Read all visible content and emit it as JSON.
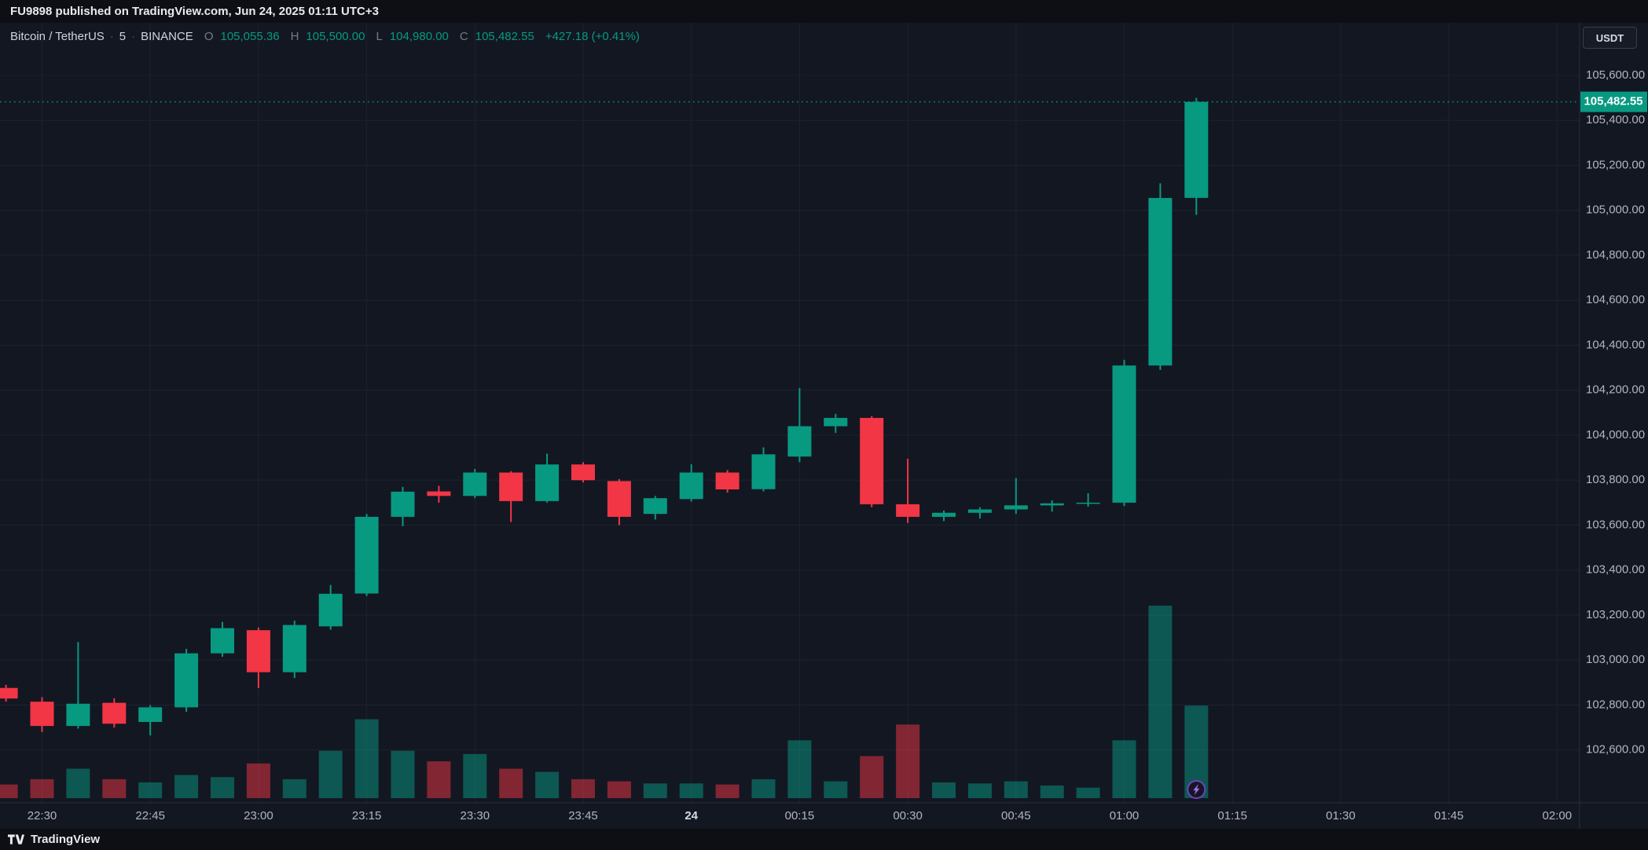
{
  "top_bar": {
    "text": "FU9898 published on TradingView.com, Jun 24, 2025 01:11 UTC+3"
  },
  "legend": {
    "symbol": "Bitcoin / TetherUS",
    "sep": "·",
    "interval": "5",
    "exchange": "BINANCE",
    "ohlc": {
      "o_label": "O",
      "o": "105,055.36",
      "h_label": "H",
      "h": "105,500.00",
      "l_label": "L",
      "l": "104,980.00",
      "c_label": "C",
      "c": "105,482.55",
      "change": "+427.18 (+0.41%)"
    }
  },
  "price_axis": {
    "currency_button": "USDT",
    "labels": [
      "105,600.00",
      "105,400.00",
      "105,200.00",
      "105,000.00",
      "104,800.00",
      "104,600.00",
      "104,400.00",
      "104,200.00",
      "104,000.00",
      "103,800.00",
      "103,600.00",
      "103,400.00",
      "103,200.00",
      "103,000.00",
      "102,800.00",
      "102,600.00"
    ],
    "last_price_badge": "105,482.55"
  },
  "time_axis": {
    "labels": [
      "22:30",
      "22:45",
      "23:00",
      "23:15",
      "23:30",
      "23:45",
      "24",
      "00:15",
      "00:30",
      "00:45",
      "01:00",
      "01:15",
      "01:30",
      "01:45",
      "02:00"
    ],
    "emphasized_label": "24"
  },
  "footer": {
    "brand": "TradingView"
  },
  "colors": {
    "up": "#089981",
    "down": "#f23645",
    "bg": "#131722",
    "grid": "#1d222f",
    "axis_separator": "#2a2e39",
    "axis_text": "#b2b5be",
    "axis_text_emphasis": "#d8dbe3",
    "badge_text": "#ffffff",
    "marker_purple": "#9d71f0"
  },
  "chart_data": {
    "type": "candlestick",
    "title": "Bitcoin / TetherUS · 5 · BINANCE",
    "interval": "5m",
    "quote_currency": "USDT",
    "last_price": 105482.55,
    "price_gridline_step": 200,
    "visible_price_range": [
      102450,
      105750
    ],
    "legend_position": "top-left",
    "grid": true,
    "times": [
      "22:25",
      "22:30",
      "22:35",
      "22:40",
      "22:45",
      "22:50",
      "22:55",
      "23:00",
      "23:05",
      "23:10",
      "23:15",
      "23:20",
      "23:25",
      "23:30",
      "23:35",
      "23:40",
      "23:45",
      "23:50",
      "23:55",
      "00:00",
      "00:05",
      "00:10",
      "00:15",
      "00:20",
      "00:25",
      "00:30",
      "00:35",
      "00:40",
      "00:45",
      "00:50",
      "00:55",
      "01:00",
      "01:05",
      "01:10"
    ],
    "ohlc": [
      [
        102876,
        102890,
        102815,
        102829
      ],
      [
        102815,
        102835,
        102680,
        102707
      ],
      [
        102707,
        103080,
        102695,
        102806
      ],
      [
        102810,
        102830,
        102700,
        102717
      ],
      [
        102725,
        102800,
        102665,
        102790
      ],
      [
        102790,
        103050,
        102770,
        103030
      ],
      [
        103030,
        103170,
        103015,
        103142
      ],
      [
        103133,
        103145,
        102876,
        102946
      ],
      [
        102946,
        103175,
        102920,
        103156
      ],
      [
        103150,
        103334,
        103135,
        103295
      ],
      [
        103296,
        103650,
        103285,
        103637
      ],
      [
        103637,
        103770,
        103595,
        103749
      ],
      [
        103750,
        103775,
        103700,
        103730
      ],
      [
        103730,
        103850,
        103720,
        103834
      ],
      [
        103834,
        103840,
        103614,
        103707
      ],
      [
        103707,
        103918,
        103700,
        103870
      ],
      [
        103870,
        103880,
        103790,
        103800
      ],
      [
        103796,
        103805,
        103600,
        103637
      ],
      [
        103650,
        103730,
        103625,
        103720
      ],
      [
        103716,
        103871,
        103705,
        103834
      ],
      [
        103834,
        103845,
        103745,
        103759
      ],
      [
        103760,
        103946,
        103750,
        103915
      ],
      [
        103905,
        104210,
        103880,
        104040
      ],
      [
        104040,
        104095,
        104010,
        104077
      ],
      [
        104077,
        104085,
        103680,
        103693
      ],
      [
        103693,
        103895,
        103610,
        103637
      ],
      [
        103637,
        103665,
        103618,
        103655
      ],
      [
        103655,
        103680,
        103630,
        103670
      ],
      [
        103670,
        103810,
        103650,
        103688
      ],
      [
        103688,
        103710,
        103660,
        103697
      ],
      [
        103697,
        103742,
        103682,
        103700
      ],
      [
        103700,
        104335,
        103685,
        104310
      ],
      [
        104310,
        105120,
        104290,
        105055
      ],
      [
        105055.36,
        105500.0,
        104980.0,
        105482.55
      ]
    ],
    "volumes_rel": [
      13,
      18,
      28,
      18,
      15,
      22,
      20,
      33,
      18,
      45,
      75,
      45,
      35,
      42,
      28,
      25,
      18,
      16,
      14,
      14,
      13,
      18,
      55,
      16,
      40,
      70,
      15,
      14,
      16,
      12,
      10,
      55,
      183,
      88
    ],
    "marker": {
      "time": "01:10",
      "icon": "lightning",
      "style": "purple-circle"
    }
  }
}
